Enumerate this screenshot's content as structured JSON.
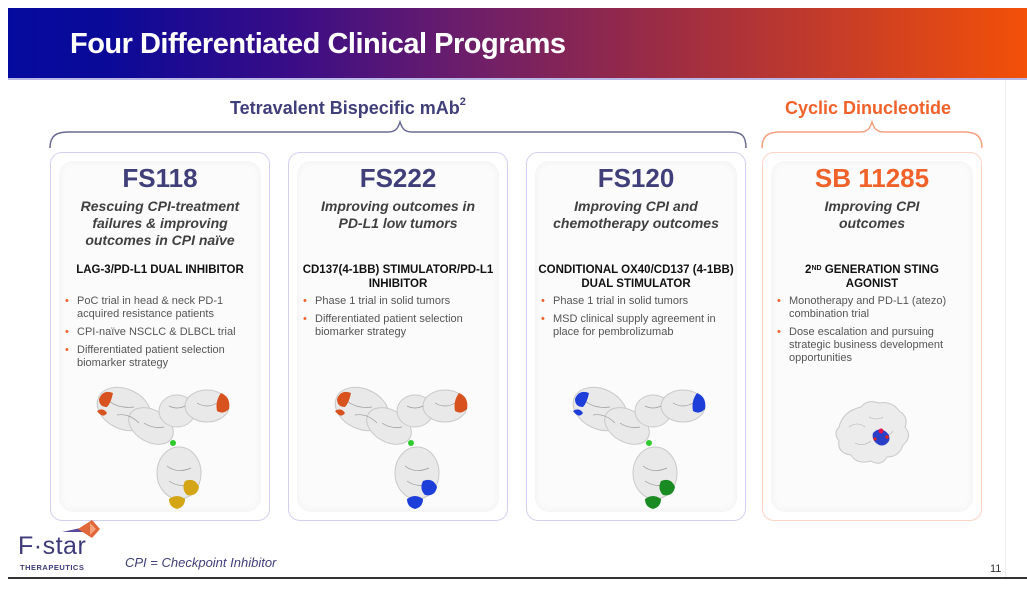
{
  "slide": {
    "title": "Four Differentiated Clinical Programs",
    "groups": [
      {
        "label": "Tetravalent Bispecific mAb",
        "superscript": "2",
        "color": "#403f79"
      },
      {
        "label": "Cyclic Dinucleotide",
        "color": "#f0622a"
      }
    ],
    "programs": [
      {
        "name": "FS118",
        "subtitle": "Rescuing CPI-treatment failures & improving outcomes in CPI naïve",
        "mechanism": "LAG-3/PD-L1 DUAL INHIBITOR",
        "bullets": [
          "PoC trial in head & neck PD-1 acquired resistance patients",
          "CPI-naïve NSCLC & DLBCL trial",
          "Differentiated patient selection biomarker strategy"
        ],
        "image": "antibody-structure-orange-yellow"
      },
      {
        "name": "FS222",
        "subtitle": "Improving outcomes in PD-L1 low tumors",
        "mechanism": "CD137(4-1BB) STIMULATOR/PD-L1 INHIBITOR",
        "bullets": [
          "Phase 1 trial in solid tumors",
          "Differentiated patient selection biomarker strategy"
        ],
        "image": "antibody-structure-orange-blue"
      },
      {
        "name": "FS120",
        "subtitle": "Improving CPI and chemotherapy outcomes",
        "mechanism": "CONDITIONAL OX40/CD137 (4-1BB) DUAL STIMULATOR",
        "bullets": [
          "Phase 1 trial in solid tumors",
          "MSD clinical supply agreement in place for pembrolizumab"
        ],
        "image": "antibody-structure-blue-green"
      },
      {
        "name": "SB 11285",
        "subtitle": "Improving CPI outcomes",
        "mechanism_sup_base": "2",
        "mechanism_sup": "ND",
        "mechanism": " GENERATION STING AGONIST",
        "bullets": [
          "Monotherapy and PD-L1 (atezo) combination trial",
          "Dose escalation and pursuing strategic business development opportunities"
        ],
        "image": "sting-protein-structure"
      }
    ],
    "footnote": "CPI = Checkpoint Inhibitor",
    "page_number": "11",
    "logo": {
      "name": "F·star",
      "tagline": "THERAPEUTICS"
    },
    "bullet_glyph": "•",
    "colors": {
      "accent_blue": "#403f79",
      "accent_orange": "#f0622a"
    }
  }
}
